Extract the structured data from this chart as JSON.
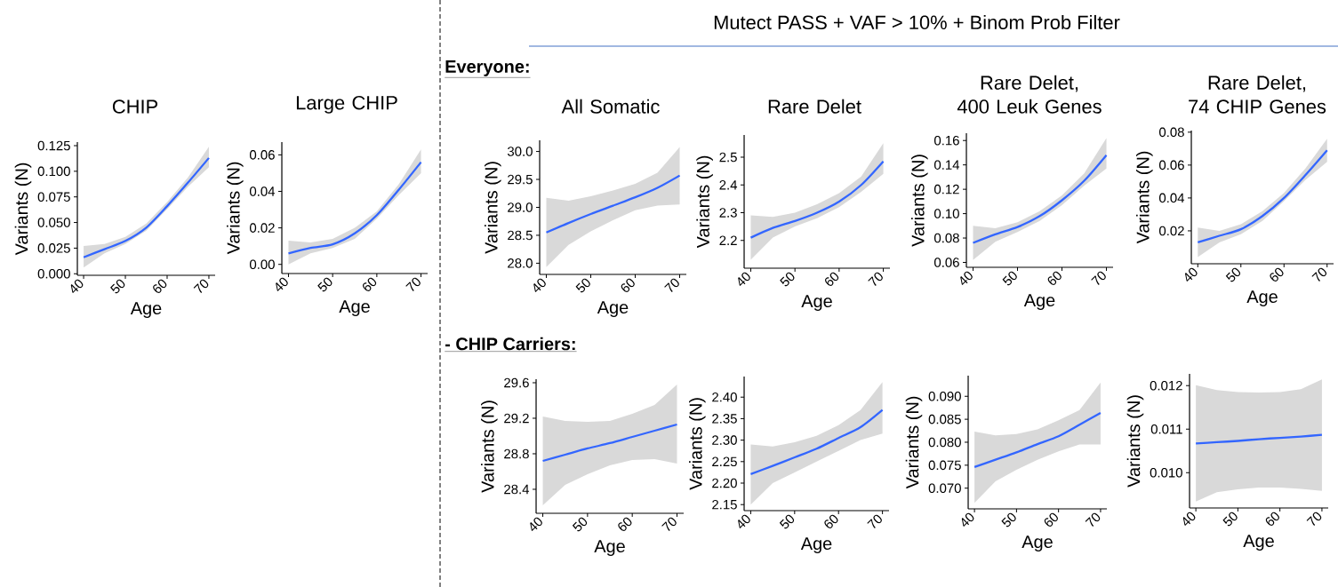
{
  "chart_data": [
    {
      "type": "line",
      "title": "CHIP",
      "xlabel": "Age",
      "ylabel": "Variants (N)",
      "x": [
        40,
        45,
        50,
        55,
        60,
        65,
        70
      ],
      "xlim": [
        38.5,
        71.5
      ],
      "xticks": [
        40,
        50,
        60,
        70
      ],
      "ylim": [
        -0.0015,
        0.1285
      ],
      "yticks": [
        {
          "value": 0,
          "label": "0.000"
        },
        0.025,
        {
          "value": 0.05,
          "label": "0.050"
        },
        0.075,
        {
          "value": 0.1,
          "label": "0.100"
        },
        0.125
      ],
      "series": [
        {
          "color": "#3366ff",
          "values": [
            0.016,
            0.024,
            0.032,
            0.045,
            0.066,
            0.089,
            0.113
          ],
          "lower": [
            0.006,
            0.02,
            0.029,
            0.042,
            0.063,
            0.085,
            0.104
          ],
          "upper": [
            0.027,
            0.029,
            0.036,
            0.049,
            0.07,
            0.094,
            0.124
          ]
        }
      ]
    },
    {
      "type": "line",
      "title": "Large CHIP",
      "xlabel": "Age",
      "ylabel": "Variants (N)",
      "x": [
        40,
        45,
        50,
        55,
        60,
        65,
        70
      ],
      "xlim": [
        38.5,
        71.5
      ],
      "xticks": [
        40,
        50,
        60,
        70
      ],
      "ylim": [
        -0.005,
        0.067
      ],
      "yticks": [
        {
          "value": 0,
          "label": "0.00"
        },
        0.02,
        0.04,
        0.06
      ],
      "series": [
        {
          "color": "#3366ff",
          "values": [
            0.006,
            0.009,
            0.011,
            0.017,
            0.027,
            0.041,
            0.056
          ],
          "lower": [
            0.0,
            0.006,
            0.009,
            0.014,
            0.025,
            0.038,
            0.05
          ],
          "upper": [
            0.013,
            0.012,
            0.014,
            0.02,
            0.029,
            0.044,
            0.063
          ]
        }
      ]
    },
    {
      "type": "line",
      "title": "All Somatic",
      "xlabel": "Age",
      "ylabel": "Variants (N)",
      "annotations": [
        "Mutect PASS + VAF > 10% + Binom Prob Filter",
        "Everyone:"
      ],
      "x": [
        40,
        45,
        50,
        55,
        60,
        65,
        70
      ],
      "xlim": [
        38.5,
        71.5
      ],
      "xticks": [
        40,
        50,
        60,
        70
      ],
      "ylim": [
        27.8,
        30.2
      ],
      "yticks": [
        {
          "value": 28,
          "label": "28.0"
        },
        28.5,
        {
          "value": 29,
          "label": "29.0"
        },
        29.5,
        {
          "value": 30,
          "label": "30.0"
        }
      ],
      "series": [
        {
          "color": "#3366ff",
          "values": [
            28.55,
            28.72,
            28.88,
            29.03,
            29.18,
            29.35,
            29.57
          ],
          "lower": [
            27.93,
            28.33,
            28.57,
            28.77,
            28.95,
            29.03,
            29.05
          ],
          "upper": [
            29.17,
            29.12,
            29.2,
            29.3,
            29.42,
            29.62,
            30.08
          ]
        }
      ]
    },
    {
      "type": "line",
      "title": "Rare Delet",
      "xlabel": "Age",
      "ylabel": "Variants (N)",
      "x": [
        40,
        45,
        50,
        55,
        60,
        65,
        70
      ],
      "xlim": [
        38.5,
        71.5
      ],
      "xticks": [
        40,
        50,
        60,
        70
      ],
      "ylim": [
        2.1,
        2.58
      ],
      "yticks": [
        2.2,
        2.3,
        2.4,
        2.5
      ],
      "series": [
        {
          "color": "#3366ff",
          "values": [
            2.21,
            2.245,
            2.27,
            2.3,
            2.34,
            2.4,
            2.485
          ],
          "lower": [
            2.13,
            2.21,
            2.25,
            2.28,
            2.32,
            2.375,
            2.44
          ],
          "upper": [
            2.29,
            2.285,
            2.3,
            2.33,
            2.37,
            2.43,
            2.55
          ]
        }
      ]
    },
    {
      "type": "line",
      "title": "Rare Delet, 400 Leuk Genes",
      "xlabel": "Age",
      "ylabel": "Variants (N)",
      "x": [
        40,
        45,
        50,
        55,
        60,
        65,
        70
      ],
      "xlim": [
        38.5,
        71.5
      ],
      "xticks": [
        40,
        50,
        60,
        70
      ],
      "ylim": [
        0.056,
        0.166
      ],
      "yticks": [
        0.06,
        0.08,
        {
          "value": 0.1,
          "label": "0.10"
        },
        0.12,
        0.14,
        0.16
      ],
      "series": [
        {
          "color": "#3366ff",
          "values": [
            0.076,
            0.083,
            0.089,
            0.098,
            0.111,
            0.127,
            0.148
          ],
          "lower": [
            0.062,
            0.077,
            0.085,
            0.094,
            0.107,
            0.123,
            0.137
          ],
          "upper": [
            0.09,
            0.088,
            0.093,
            0.102,
            0.115,
            0.133,
            0.162
          ]
        }
      ]
    },
    {
      "type": "line",
      "title": "Rare Delet, 74 CHIP Genes",
      "xlabel": "Age",
      "ylabel": "Variants (N)",
      "x": [
        40,
        45,
        50,
        55,
        60,
        65,
        70
      ],
      "xlim": [
        38.5,
        71.5
      ],
      "xticks": [
        40,
        50,
        60,
        70
      ],
      "ylim": [
        0.0,
        0.081
      ],
      "yticks": [
        0.02,
        0.04,
        0.06,
        0.08
      ],
      "series": [
        {
          "color": "#3366ff",
          "values": [
            0.013,
            0.017,
            0.021,
            0.029,
            0.04,
            0.054,
            0.069
          ],
          "lower": [
            0.004,
            0.013,
            0.018,
            0.026,
            0.038,
            0.051,
            0.062
          ],
          "upper": [
            0.022,
            0.02,
            0.024,
            0.032,
            0.043,
            0.058,
            0.076
          ]
        }
      ]
    },
    {
      "type": "line",
      "xlabel": "Age",
      "ylabel": "Variants (N)",
      "annotations": [
        "- CHIP Carriers:"
      ],
      "x": [
        40,
        45,
        50,
        55,
        60,
        65,
        70
      ],
      "xlim": [
        38.5,
        71.5
      ],
      "xticks": [
        40,
        50,
        60,
        70
      ],
      "ylim": [
        28.13,
        29.64
      ],
      "yticks": [
        28.4,
        28.8,
        29.2,
        29.6
      ],
      "series": [
        {
          "color": "#3366ff",
          "values": [
            28.72,
            28.79,
            28.86,
            28.92,
            28.99,
            29.06,
            29.13
          ],
          "lower": [
            28.22,
            28.45,
            28.57,
            28.67,
            28.73,
            28.74,
            28.69
          ],
          "upper": [
            29.22,
            29.17,
            29.16,
            29.17,
            29.25,
            29.35,
            29.58
          ]
        }
      ]
    },
    {
      "type": "line",
      "xlabel": "Age",
      "ylabel": "Variants (N)",
      "x": [
        40,
        45,
        50,
        55,
        60,
        65,
        70
      ],
      "xlim": [
        38.5,
        71.5
      ],
      "xticks": [
        40,
        50,
        60,
        70
      ],
      "ylim": [
        2.136,
        2.448
      ],
      "yticks": [
        2.15,
        {
          "value": 2.2,
          "label": "2.20"
        },
        2.25,
        {
          "value": 2.3,
          "label": "2.30"
        },
        2.35,
        {
          "value": 2.4,
          "label": "2.40"
        }
      ],
      "series": [
        {
          "color": "#3366ff",
          "values": [
            2.221,
            2.24,
            2.26,
            2.28,
            2.305,
            2.33,
            2.37
          ],
          "lower": [
            2.15,
            2.2,
            2.225,
            2.25,
            2.275,
            2.3,
            2.315
          ],
          "upper": [
            2.29,
            2.285,
            2.295,
            2.31,
            2.335,
            2.37,
            2.435
          ]
        }
      ]
    },
    {
      "type": "line",
      "xlabel": "Age",
      "ylabel": "Variants (N)",
      "x": [
        40,
        45,
        50,
        55,
        60,
        65,
        70
      ],
      "xlim": [
        38.5,
        71.5
      ],
      "xticks": [
        40,
        50,
        60,
        70
      ],
      "ylim": [
        0.0655,
        0.0945
      ],
      "yticks": [
        {
          "value": 0.07,
          "label": "0.070"
        },
        0.075,
        {
          "value": 0.08,
          "label": "0.080"
        },
        0.085,
        {
          "value": 0.09,
          "label": "0.090"
        }
      ],
      "series": [
        {
          "color": "#3366ff",
          "values": [
            0.0746,
            0.0762,
            0.0778,
            0.0796,
            0.0813,
            0.0838,
            0.0864
          ],
          "lower": [
            0.0668,
            0.0715,
            0.074,
            0.0762,
            0.078,
            0.0795,
            0.0795
          ],
          "upper": [
            0.0823,
            0.0815,
            0.0818,
            0.0828,
            0.0848,
            0.087,
            0.093
          ]
        }
      ]
    },
    {
      "type": "line",
      "xlabel": "Age",
      "ylabel": "Variants (N)",
      "x": [
        40,
        45,
        50,
        55,
        60,
        65,
        70
      ],
      "xlim": [
        38.5,
        71.5
      ],
      "xticks": [
        40,
        50,
        60,
        70
      ],
      "ylim": [
        0.00919,
        0.01227
      ],
      "yticks": [
        {
          "value": 0.01,
          "label": "0.010"
        },
        0.011,
        0.012
      ],
      "series": [
        {
          "color": "#3366ff",
          "values": [
            0.01067,
            0.0107,
            0.01073,
            0.01077,
            0.0108,
            0.01083,
            0.01087
          ],
          "lower": [
            0.00934,
            0.00955,
            0.00962,
            0.00966,
            0.00966,
            0.00963,
            0.00958
          ],
          "upper": [
            0.01201,
            0.0119,
            0.01185,
            0.01184,
            0.01185,
            0.01192,
            0.01214
          ]
        }
      ]
    }
  ]
}
